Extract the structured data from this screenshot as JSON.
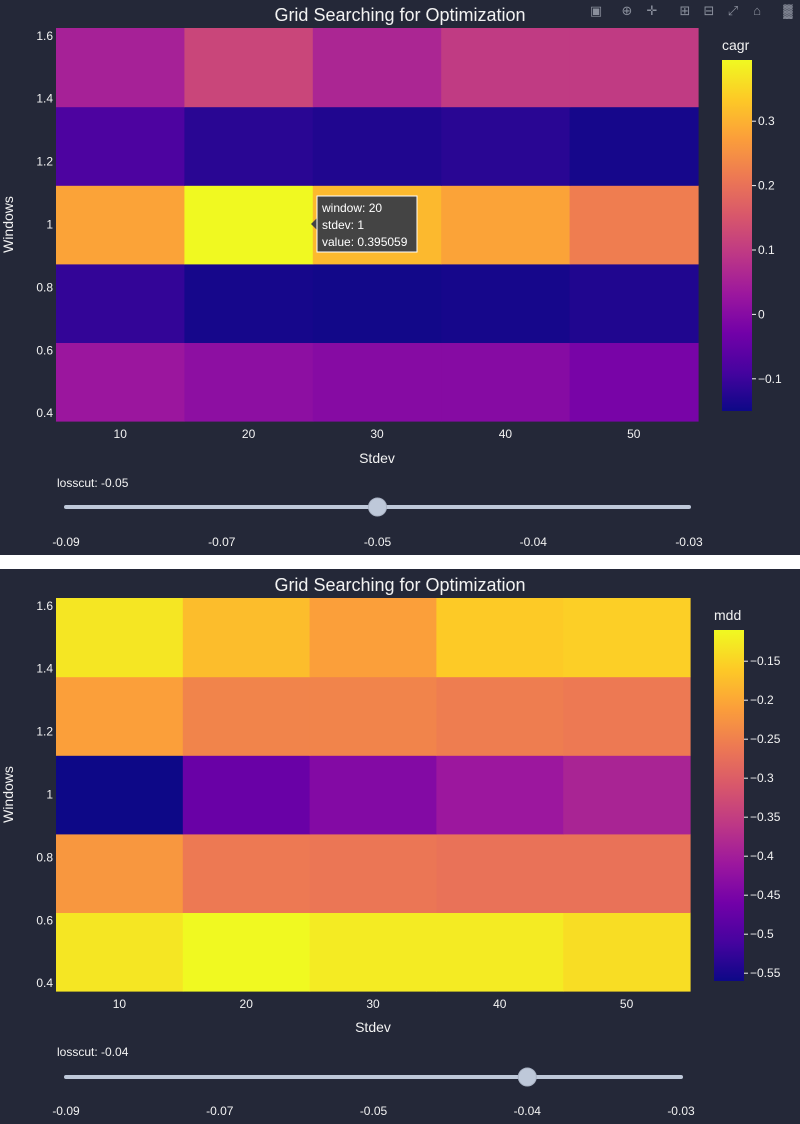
{
  "panels": [
    {
      "title": "Grid Searching for Optimization",
      "colorbar_title": "cagr",
      "slider": {
        "label": "losscut: -0.05",
        "ticks": [
          "-0.09",
          "-0.07",
          "-0.05",
          "-0.04",
          "-0.03"
        ],
        "active_index": 2
      },
      "tooltip": {
        "lines": [
          "window: 20",
          "stdev: 1",
          "value: 0.395059"
        ]
      }
    },
    {
      "title": "Grid Searching for Optimization",
      "colorbar_title": "mdd",
      "slider": {
        "label": "losscut: -0.04",
        "ticks": [
          "-0.09",
          "-0.07",
          "-0.05",
          "-0.04",
          "-0.03"
        ],
        "active_index": 3
      }
    }
  ],
  "modebar": {
    "icons": [
      "camera-icon",
      "zoom-icon",
      "pan-icon",
      "zoom-in-icon",
      "zoom-out-icon",
      "autoscale-icon",
      "home-icon",
      "plotly-logo-icon"
    ]
  },
  "chart_data": [
    {
      "type": "heatmap",
      "title": "Grid Searching for Optimization",
      "xlabel": "Stdev",
      "ylabel": "Windows",
      "x": [
        10,
        20,
        30,
        40,
        50
      ],
      "x_ticks": [
        "10",
        "20",
        "30",
        "40",
        "50"
      ],
      "y": [
        0.5,
        0.75,
        1,
        1.25,
        1.5
      ],
      "y_ticks": [
        "0.4",
        "0.6",
        "0.8",
        "1",
        "1.2",
        "1.4",
        "1.6"
      ],
      "ylim": [
        0.375,
        1.625
      ],
      "z": [
        [
          0.03,
          0.01,
          0.0,
          0.0,
          -0.02
        ],
        [
          -0.11,
          -0.14,
          -0.145,
          -0.14,
          -0.13
        ],
        [
          0.28,
          0.395059,
          0.31,
          0.28,
          0.22
        ],
        [
          -0.08,
          -0.12,
          -0.13,
          -0.12,
          -0.14
        ],
        [
          0.05,
          0.12,
          0.06,
          0.1,
          0.1
        ]
      ],
      "zlim": [
        -0.15,
        0.395059
      ],
      "colorbar": {
        "title": "cagr",
        "ticks": [
          -0.1,
          0,
          0.1,
          0.2,
          0.3
        ],
        "tick_labels": [
          "−0.1",
          "0",
          "0.1",
          "0.2",
          "0.3"
        ]
      },
      "colorscale": [
        "#0d0887",
        "#46039f",
        "#7201a8",
        "#9c179e",
        "#bd3786",
        "#d8576b",
        "#ed7953",
        "#fb9f3a",
        "#fdca26",
        "#f0f921"
      ]
    },
    {
      "type": "heatmap",
      "title": "Grid Searching for Optimization",
      "xlabel": "Stdev",
      "ylabel": "Windows",
      "x": [
        10,
        20,
        30,
        40,
        50
      ],
      "x_ticks": [
        "10",
        "20",
        "30",
        "40",
        "50"
      ],
      "y": [
        0.5,
        0.75,
        1,
        1.25,
        1.5
      ],
      "y_ticks": [
        "0.4",
        "0.6",
        "0.8",
        "1",
        "1.2",
        "1.4",
        "1.6"
      ],
      "ylim": [
        0.375,
        1.625
      ],
      "z": [
        [
          -0.13,
          -0.11,
          -0.125,
          -0.125,
          -0.14
        ],
        [
          -0.22,
          -0.26,
          -0.265,
          -0.27,
          -0.27
        ],
        [
          -0.56,
          -0.47,
          -0.44,
          -0.41,
          -0.39
        ],
        [
          -0.21,
          -0.245,
          -0.245,
          -0.255,
          -0.26
        ],
        [
          -0.13,
          -0.175,
          -0.21,
          -0.16,
          -0.155
        ]
      ],
      "zlim": [
        -0.56,
        -0.11
      ],
      "colorbar": {
        "title": "mdd",
        "ticks": [
          -0.55,
          -0.5,
          -0.45,
          -0.4,
          -0.35,
          -0.3,
          -0.25,
          -0.2,
          -0.15
        ],
        "tick_labels": [
          "−0.55",
          "−0.5",
          "−0.45",
          "−0.4",
          "−0.35",
          "−0.3",
          "−0.25",
          "−0.2",
          "−0.15"
        ]
      },
      "colorscale": [
        "#0d0887",
        "#46039f",
        "#7201a8",
        "#9c179e",
        "#bd3786",
        "#d8576b",
        "#ed7953",
        "#fb9f3a",
        "#fdca26",
        "#f0f921"
      ]
    }
  ]
}
